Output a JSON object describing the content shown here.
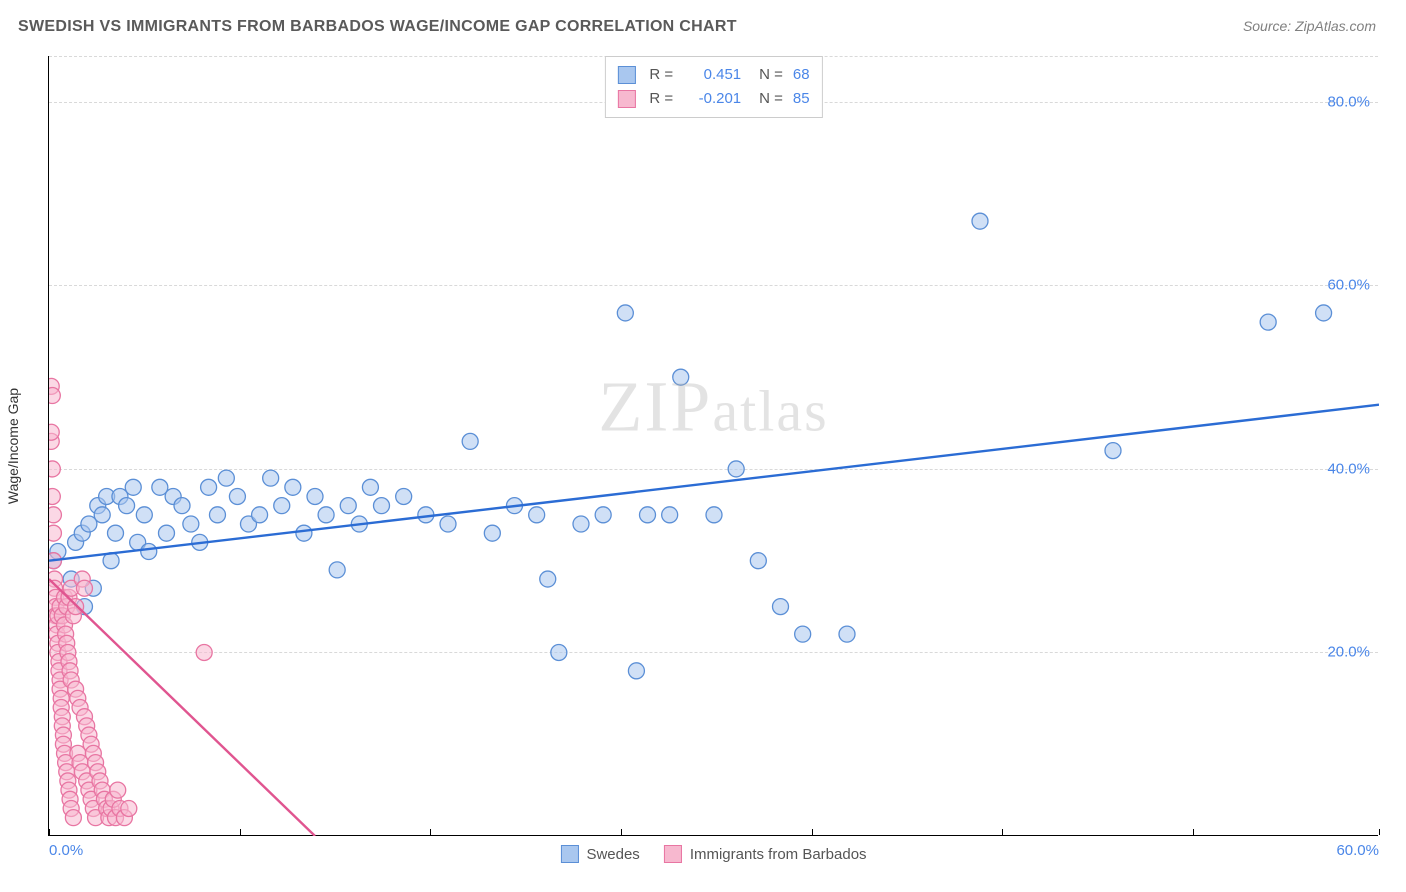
{
  "title": "SWEDISH VS IMMIGRANTS FROM BARBADOS WAGE/INCOME GAP CORRELATION CHART",
  "source": "Source: ZipAtlas.com",
  "watermark": "ZIPatlas",
  "ylabel": "Wage/Income Gap",
  "chart": {
    "type": "scatter",
    "background_color": "#ffffff",
    "grid_color": "#d9d9d9",
    "axis_color": "#000000",
    "tick_label_color": "#4a86e8",
    "xlim": [
      0,
      60
    ],
    "ylim": [
      0,
      85
    ],
    "yticks": [
      20,
      40,
      60,
      80
    ],
    "xticks_label": [
      {
        "val": 0,
        "label": "0.0%"
      },
      {
        "val": 60,
        "label": "60.0%"
      }
    ],
    "xtick_marks": [
      0,
      8.6,
      17.2,
      25.8,
      34.4,
      43,
      51.6,
      60
    ],
    "marker_radius": 8,
    "marker_opacity": 0.55,
    "line_width": 2.4,
    "series": [
      {
        "name": "Swedes",
        "legend_label": "Swedes",
        "fill_color": "#a9c7ef",
        "stroke_color": "#5b8fd6",
        "line_color": "#2b6cd4",
        "r_value": "0.451",
        "n_value": "68",
        "trend": {
          "x1": 0,
          "y1": 30,
          "x2": 60,
          "y2": 47
        },
        "points": [
          [
            0.2,
            30
          ],
          [
            0.4,
            31
          ],
          [
            1.0,
            28
          ],
          [
            1.2,
            32
          ],
          [
            1.5,
            33
          ],
          [
            1.6,
            25
          ],
          [
            1.8,
            34
          ],
          [
            2.0,
            27
          ],
          [
            2.2,
            36
          ],
          [
            2.4,
            35
          ],
          [
            2.6,
            37
          ],
          [
            2.8,
            30
          ],
          [
            3.0,
            33
          ],
          [
            3.2,
            37
          ],
          [
            3.5,
            36
          ],
          [
            3.8,
            38
          ],
          [
            4.0,
            32
          ],
          [
            4.3,
            35
          ],
          [
            4.5,
            31
          ],
          [
            5.0,
            38
          ],
          [
            5.3,
            33
          ],
          [
            5.6,
            37
          ],
          [
            6.0,
            36
          ],
          [
            6.4,
            34
          ],
          [
            6.8,
            32
          ],
          [
            7.2,
            38
          ],
          [
            7.6,
            35
          ],
          [
            8.0,
            39
          ],
          [
            8.5,
            37
          ],
          [
            9.0,
            34
          ],
          [
            9.5,
            35
          ],
          [
            10.0,
            39
          ],
          [
            10.5,
            36
          ],
          [
            11.0,
            38
          ],
          [
            11.5,
            33
          ],
          [
            12.0,
            37
          ],
          [
            12.5,
            35
          ],
          [
            13.0,
            29
          ],
          [
            13.5,
            36
          ],
          [
            14.0,
            34
          ],
          [
            14.5,
            38
          ],
          [
            15.0,
            36
          ],
          [
            16.0,
            37
          ],
          [
            17.0,
            35
          ],
          [
            18.0,
            34
          ],
          [
            19.0,
            43
          ],
          [
            20.0,
            33
          ],
          [
            21.0,
            36
          ],
          [
            22.0,
            35
          ],
          [
            22.5,
            28
          ],
          [
            23.0,
            20
          ],
          [
            24.0,
            34
          ],
          [
            25.0,
            35
          ],
          [
            26.0,
            57
          ],
          [
            26.5,
            18
          ],
          [
            27.0,
            35
          ],
          [
            28.0,
            35
          ],
          [
            28.5,
            50
          ],
          [
            30.0,
            35
          ],
          [
            31.0,
            40
          ],
          [
            32.0,
            30
          ],
          [
            33.0,
            25
          ],
          [
            34.0,
            22
          ],
          [
            36.0,
            22
          ],
          [
            42.0,
            67
          ],
          [
            48.0,
            42
          ],
          [
            55.0,
            56
          ],
          [
            57.5,
            57
          ]
        ]
      },
      {
        "name": "Immigrants from Barbados",
        "legend_label": "Immigrants from Barbados",
        "fill_color": "#f7b8cf",
        "stroke_color": "#e875a2",
        "line_color": "#e05590",
        "r_value": "-0.201",
        "n_value": "85",
        "trend": {
          "x1": 0,
          "y1": 28,
          "x2": 12,
          "y2": 0
        },
        "points": [
          [
            0.1,
            49
          ],
          [
            0.1,
            43
          ],
          [
            0.1,
            44
          ],
          [
            0.15,
            40
          ],
          [
            0.15,
            37
          ],
          [
            0.2,
            35
          ],
          [
            0.2,
            33
          ],
          [
            0.2,
            30
          ],
          [
            0.25,
            28
          ],
          [
            0.25,
            27
          ],
          [
            0.3,
            26
          ],
          [
            0.3,
            25
          ],
          [
            0.3,
            24
          ],
          [
            0.35,
            23
          ],
          [
            0.35,
            22
          ],
          [
            0.4,
            21
          ],
          [
            0.4,
            20
          ],
          [
            0.4,
            24
          ],
          [
            0.45,
            19
          ],
          [
            0.45,
            18
          ],
          [
            0.5,
            17
          ],
          [
            0.5,
            16
          ],
          [
            0.5,
            25
          ],
          [
            0.55,
            15
          ],
          [
            0.55,
            14
          ],
          [
            0.6,
            13
          ],
          [
            0.6,
            12
          ],
          [
            0.6,
            24
          ],
          [
            0.65,
            11
          ],
          [
            0.65,
            10
          ],
          [
            0.7,
            26
          ],
          [
            0.7,
            9
          ],
          [
            0.7,
            23
          ],
          [
            0.75,
            8
          ],
          [
            0.75,
            22
          ],
          [
            0.8,
            7
          ],
          [
            0.8,
            21
          ],
          [
            0.8,
            25
          ],
          [
            0.85,
            6
          ],
          [
            0.85,
            20
          ],
          [
            0.9,
            5
          ],
          [
            0.9,
            26
          ],
          [
            0.9,
            19
          ],
          [
            0.95,
            4
          ],
          [
            0.95,
            18
          ],
          [
            1.0,
            27
          ],
          [
            1.0,
            3
          ],
          [
            1.0,
            17
          ],
          [
            1.1,
            24
          ],
          [
            1.1,
            2
          ],
          [
            1.2,
            16
          ],
          [
            1.2,
            25
          ],
          [
            1.3,
            15
          ],
          [
            1.3,
            9
          ],
          [
            1.4,
            14
          ],
          [
            1.4,
            8
          ],
          [
            1.5,
            28
          ],
          [
            1.5,
            7
          ],
          [
            1.6,
            13
          ],
          [
            1.6,
            27
          ],
          [
            1.7,
            12
          ],
          [
            1.7,
            6
          ],
          [
            1.8,
            11
          ],
          [
            1.8,
            5
          ],
          [
            1.9,
            10
          ],
          [
            1.9,
            4
          ],
          [
            2.0,
            9
          ],
          [
            2.0,
            3
          ],
          [
            2.1,
            8
          ],
          [
            2.1,
            2
          ],
          [
            2.2,
            7
          ],
          [
            2.3,
            6
          ],
          [
            2.4,
            5
          ],
          [
            2.5,
            4
          ],
          [
            2.6,
            3
          ],
          [
            2.7,
            2
          ],
          [
            2.8,
            3
          ],
          [
            2.9,
            4
          ],
          [
            3.0,
            2
          ],
          [
            3.1,
            5
          ],
          [
            3.2,
            3
          ],
          [
            3.4,
            2
          ],
          [
            3.6,
            3
          ],
          [
            7.0,
            20
          ],
          [
            0.15,
            48
          ]
        ]
      }
    ],
    "legend_top": {
      "r_label": "R =",
      "n_label": "N ="
    }
  }
}
